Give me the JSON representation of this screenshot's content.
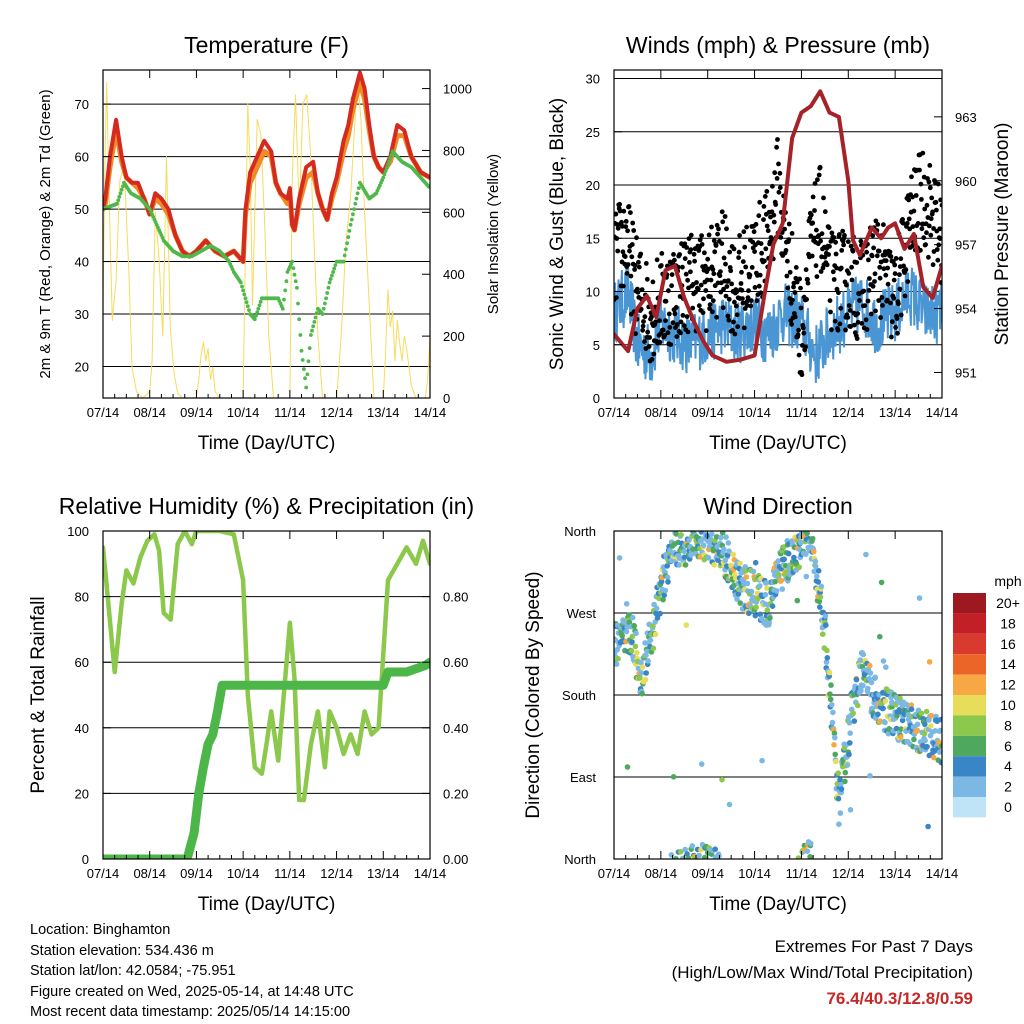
{
  "colors": {
    "red": "#d42a20",
    "orange": "#f08a24",
    "green_td": "#4fb84a",
    "yellow": "#f5dc5e",
    "blue": "#4a96d4",
    "black": "#000000",
    "maroon": "#a52228",
    "rh_green": "#8cc84b",
    "precip_green": "#4db648",
    "extremes": "#c62828"
  },
  "chart_data": [
    {
      "type": "line",
      "title": "Temperature (F)",
      "xlabel": "Time (Day/UTC)",
      "ylabel": "2m & 9m T (Red, Orange) & 2m Td (Green)",
      "ylabel_right": "Solar Insolation (Yellow)",
      "x_ticks": [
        "07/14",
        "08/14",
        "09/14",
        "10/14",
        "11/14",
        "12/14",
        "13/14",
        "14/14"
      ],
      "ylim": [
        14,
        76.5
      ],
      "y_ticks": [
        20,
        30,
        40,
        50,
        60,
        70
      ],
      "ylim_right": [
        0,
        1060
      ],
      "y_ticks_right": [
        0,
        200,
        400,
        600,
        800,
        1000
      ],
      "grid": true,
      "series": [
        {
          "name": "2m T",
          "color_key": "red",
          "x": [
            0,
            0.05,
            0.15,
            0.28,
            0.4,
            0.5,
            0.62,
            0.75,
            0.88,
            1.0,
            1.12,
            1.25,
            1.4,
            1.55,
            1.7,
            1.85,
            2.0,
            2.2,
            2.4,
            2.6,
            2.8,
            3.0,
            3.05,
            3.15,
            3.3,
            3.45,
            3.6,
            3.7,
            3.8,
            3.95,
            4.0,
            4.05,
            4.1,
            4.2,
            4.35,
            4.5,
            4.6,
            4.7,
            4.8,
            4.9,
            5.0,
            5.15,
            5.25,
            5.35,
            5.5,
            5.6,
            5.7,
            5.8,
            5.9,
            6.0,
            6.15,
            6.3,
            6.45,
            6.6,
            6.8,
            7.0
          ],
          "values": [
            50,
            52,
            60,
            67,
            60,
            56,
            55,
            55,
            52,
            49,
            53,
            52,
            50,
            45,
            42,
            41,
            42,
            44,
            42,
            41,
            42,
            40,
            50,
            57,
            60,
            63,
            61,
            55,
            53,
            52,
            54,
            47,
            46,
            52,
            58,
            59,
            53,
            50,
            48,
            53,
            56,
            63,
            66,
            71,
            76,
            73,
            66,
            60,
            58,
            57,
            60,
            66,
            65,
            60,
            57,
            56
          ]
        },
        {
          "name": "9m T",
          "color_key": "orange",
          "x": [
            0,
            0.05,
            0.15,
            0.28,
            0.4,
            0.5,
            0.62,
            0.75,
            0.88,
            1.0,
            1.12,
            1.25,
            1.4,
            1.55,
            1.7,
            1.85,
            2.0,
            2.2,
            2.4,
            2.6,
            2.8,
            3.0,
            3.05,
            3.15,
            3.3,
            3.45,
            3.6,
            3.7,
            3.8,
            3.95,
            4.0,
            4.05,
            4.1,
            4.2,
            4.35,
            4.5,
            4.6,
            4.7,
            4.8,
            4.9,
            5.0,
            5.15,
            5.25,
            5.35,
            5.5,
            5.6,
            5.7,
            5.8,
            5.9,
            6.0,
            6.15,
            6.3,
            6.45,
            6.6,
            6.8,
            7.0
          ],
          "values": [
            50,
            51,
            58,
            65,
            59,
            56,
            55,
            54,
            52,
            49,
            52,
            51,
            49,
            45,
            42,
            41,
            42,
            44,
            42,
            41,
            42,
            40,
            49,
            55,
            58,
            61,
            60,
            55,
            53,
            51,
            53,
            47,
            46,
            51,
            56,
            57,
            53,
            50,
            48,
            52,
            55,
            61,
            64,
            69,
            74,
            71,
            65,
            60,
            58,
            57,
            59,
            64,
            64,
            60,
            57,
            56
          ]
        },
        {
          "name": "2m Td",
          "color_key": "green_td",
          "x": [
            0,
            0.3,
            0.45,
            0.6,
            0.8,
            1.0,
            1.2,
            1.3,
            1.5,
            1.7,
            1.9,
            2.1,
            2.3,
            2.5,
            2.7,
            2.8,
            2.95,
            3.05,
            3.15,
            3.25,
            3.4,
            3.6,
            3.75,
            3.85,
            3.95,
            4.05,
            4.15,
            4.25,
            4.35,
            4.45,
            4.6,
            4.7,
            4.85,
            5.0,
            5.15,
            5.3,
            5.5,
            5.7,
            5.85,
            6.0,
            6.2,
            6.4,
            6.6,
            6.8,
            7.0
          ],
          "values": [
            50,
            51,
            55,
            53,
            52,
            50,
            46,
            44,
            42,
            41,
            41,
            42,
            43,
            42,
            40,
            38,
            36,
            33,
            30,
            29,
            33,
            33,
            33,
            31,
            38,
            40,
            35,
            23,
            16,
            26,
            31,
            30,
            36,
            40,
            40,
            47,
            55,
            52,
            53,
            56,
            61,
            59,
            58,
            56,
            54
          ]
        },
        {
          "name": "Solar Insolation",
          "color_key": "yellow",
          "axis": "right",
          "x": [
            0,
            0.04,
            0.08,
            0.13,
            0.2,
            0.28,
            0.36,
            0.45,
            0.55,
            0.62,
            0.72,
            0.85,
            1.0,
            1.05,
            1.12,
            1.2,
            1.28,
            1.36,
            1.44,
            1.52,
            1.6,
            1.7,
            2.0,
            2.05,
            2.1,
            2.15,
            2.2,
            2.25,
            2.3,
            2.35,
            2.4,
            2.5,
            3.0,
            3.05,
            3.1,
            3.15,
            3.2,
            3.25,
            3.3,
            3.38,
            3.45,
            3.55,
            3.65,
            4.0,
            4.05,
            4.12,
            4.2,
            4.28,
            4.36,
            4.44,
            4.52,
            4.6,
            4.7,
            5.0,
            5.1,
            5.2,
            5.3,
            5.38,
            5.45,
            5.52,
            5.6,
            5.7,
            5.8,
            6.0,
            6.05,
            6.1,
            6.15,
            6.2,
            6.25,
            6.3,
            6.35,
            6.4,
            6.45,
            6.5,
            6.55,
            6.6,
            6.7,
            6.9,
            6.95,
            7.0
          ],
          "values": [
            300,
            750,
            1020,
            650,
            250,
            380,
            700,
            760,
            420,
            100,
            20,
            0,
            20,
            120,
            600,
            450,
            200,
            780,
            230,
            80,
            15,
            0,
            0,
            60,
            140,
            180,
            120,
            160,
            60,
            100,
            20,
            0,
            0,
            500,
            950,
            750,
            300,
            600,
            900,
            850,
            600,
            200,
            0,
            0,
            700,
            980,
            600,
            950,
            980,
            800,
            500,
            200,
            0,
            0,
            200,
            500,
            650,
            860,
            1030,
            900,
            600,
            300,
            0,
            0,
            150,
            350,
            230,
            280,
            120,
            250,
            180,
            120,
            200,
            160,
            100,
            40,
            0,
            0,
            60,
            200
          ]
        }
      ]
    },
    {
      "type": "scatter",
      "title": "Winds (mph) & Pressure (mb)",
      "xlabel": "Time (Day/UTC)",
      "ylabel": "Sonic Wind & Gust (Blue, Black)",
      "ylabel_right": "Station Pressure (Maroon)",
      "x_ticks": [
        "07/14",
        "08/14",
        "09/14",
        "10/14",
        "11/14",
        "12/14",
        "13/14",
        "14/14"
      ],
      "ylim": [
        0,
        30.8
      ],
      "y_ticks": [
        0,
        5,
        10,
        15,
        20,
        25,
        30
      ],
      "ylim_right": [
        949.8,
        965.2
      ],
      "y_ticks_right": [
        951,
        954,
        957,
        960,
        963
      ],
      "grid": true,
      "series": [
        {
          "name": "Sonic Wind",
          "color_key": "blue",
          "x": [
            0,
            0.3,
            0.5,
            0.8,
            1.0,
            1.3,
            1.6,
            2.0,
            2.3,
            2.6,
            3.0,
            3.3,
            3.6,
            4.0,
            4.3,
            4.6,
            5.0,
            5.3,
            5.6,
            6.0,
            6.3,
            6.6,
            7.0
          ],
          "values": [
            8,
            10,
            5,
            4,
            7,
            6,
            5,
            6,
            7,
            6,
            7,
            6,
            8,
            7,
            4,
            6,
            8,
            9,
            7,
            8,
            10,
            8,
            8
          ],
          "band": 3
        },
        {
          "name": "Gust",
          "color_key": "black",
          "x": [
            0,
            0.25,
            0.5,
            0.8,
            1.0,
            1.3,
            1.6,
            2.0,
            2.3,
            2.6,
            3.0,
            3.3,
            3.5,
            3.6,
            4.0,
            4.2,
            4.4,
            4.6,
            5.0,
            5.3,
            5.6,
            6.0,
            6.3,
            6.6,
            6.8,
            7.0
          ],
          "values": [
            13,
            15,
            10,
            8,
            9,
            10,
            11,
            11,
            13,
            10,
            13,
            15,
            20,
            16,
            6,
            14,
            17,
            11,
            11,
            10,
            13,
            9,
            16,
            19,
            17,
            15
          ],
          "band": 6
        },
        {
          "name": "Station Pressure",
          "color_key": "maroon",
          "axis": "right",
          "x": [
            0,
            0.3,
            0.5,
            0.7,
            0.9,
            1.1,
            1.3,
            1.5,
            1.7,
            1.9,
            2.1,
            2.4,
            2.7,
            3.0,
            3.2,
            3.4,
            3.6,
            3.8,
            4.0,
            4.2,
            4.4,
            4.6,
            4.8,
            5.0,
            5.1,
            5.25,
            5.5,
            5.7,
            5.85,
            6.0,
            6.2,
            6.4,
            6.6,
            6.8,
            7.0
          ],
          "values": [
            952.8,
            952.0,
            954.0,
            954.6,
            953.6,
            955.8,
            956.0,
            954.5,
            953.4,
            952.5,
            951.8,
            951.5,
            951.6,
            951.8,
            954.5,
            957.0,
            958.0,
            962.0,
            963.2,
            963.5,
            964.2,
            963.2,
            963.0,
            960.0,
            957.2,
            956.5,
            957.8,
            957.3,
            957.8,
            958.0,
            956.8,
            957.5,
            955.0,
            954.5,
            956.0
          ]
        }
      ]
    },
    {
      "type": "line",
      "title": "Relative Humidity (%) & Precipitation (in)",
      "xlabel": "Time (Day/UTC)",
      "ylabel": "Percent & Total Rainfall",
      "x_ticks": [
        "07/14",
        "08/14",
        "09/14",
        "10/14",
        "11/14",
        "12/14",
        "13/14",
        "14/14"
      ],
      "ylim": [
        0,
        100
      ],
      "y_ticks": [
        0,
        20,
        40,
        60,
        80,
        100
      ],
      "ylim_right": [
        0,
        1.0
      ],
      "y_ticks_right": [
        "0.00",
        "0.20",
        "0.40",
        "0.60",
        "0.80"
      ],
      "grid": true,
      "series": [
        {
          "name": "Relative Humidity",
          "color_key": "rh_green",
          "x": [
            0,
            0.1,
            0.25,
            0.4,
            0.5,
            0.65,
            0.8,
            0.95,
            1.1,
            1.2,
            1.3,
            1.45,
            1.6,
            1.75,
            1.9,
            2.0,
            2.2,
            2.5,
            2.8,
            3.0,
            3.1,
            3.25,
            3.4,
            3.5,
            3.6,
            3.75,
            3.9,
            4.0,
            4.1,
            4.2,
            4.3,
            4.45,
            4.6,
            4.75,
            4.85,
            5.0,
            5.15,
            5.3,
            5.45,
            5.6,
            5.75,
            5.9,
            6.1,
            6.3,
            6.5,
            6.7,
            6.85,
            7.0
          ],
          "values": [
            95,
            80,
            57,
            78,
            88,
            84,
            92,
            97,
            99,
            94,
            75,
            73,
            96,
            100,
            96,
            100,
            100,
            100,
            99,
            85,
            50,
            28,
            26,
            35,
            45,
            30,
            55,
            72,
            55,
            18,
            18,
            35,
            45,
            28,
            45,
            40,
            32,
            38,
            32,
            45,
            38,
            40,
            85,
            90,
            95,
            90,
            97,
            90
          ]
        },
        {
          "name": "Total Rainfall",
          "color_key": "precip_green",
          "axis": "right",
          "x": [
            0,
            1.8,
            1.95,
            2.05,
            2.15,
            2.25,
            2.35,
            2.45,
            2.55,
            2.7,
            3.0,
            4.0,
            5.0,
            5.5,
            6.0,
            6.1,
            6.5,
            6.9,
            7.0
          ],
          "values": [
            0.0,
            0.0,
            0.08,
            0.2,
            0.28,
            0.35,
            0.38,
            0.45,
            0.53,
            0.53,
            0.53,
            0.53,
            0.53,
            0.53,
            0.53,
            0.57,
            0.57,
            0.59,
            0.6
          ]
        }
      ]
    },
    {
      "type": "scatter",
      "title": "Wind Direction",
      "xlabel": "Time (Day/UTC)",
      "ylabel": "Direction (Colored By Speed)",
      "x_ticks": [
        "07/14",
        "08/14",
        "09/14",
        "10/14",
        "11/14",
        "12/14",
        "13/14",
        "14/14"
      ],
      "ylim": [
        0,
        360
      ],
      "y_tick_labels": [
        "North",
        "East",
        "South",
        "West",
        "North"
      ],
      "y_ticks": [
        0,
        90,
        180,
        270,
        360
      ],
      "grid": true,
      "colorbar": {
        "title": "mph",
        "labels": [
          "20+",
          "18",
          "16",
          "14",
          "12",
          "10",
          "8",
          "6",
          "4",
          "2",
          "0"
        ],
        "colors": [
          "#9c1a1f",
          "#c21f26",
          "#d93a2e",
          "#ec6528",
          "#f7a743",
          "#e8dd5b",
          "#8cc84b",
          "#4ea85d",
          "#3a85c6",
          "#7bb8e4",
          "#bfe4f7"
        ]
      },
      "series": [
        {
          "name": "Wind Direction",
          "x": [
            0,
            0.3,
            0.6,
            0.9,
            1.2,
            1.5,
            1.8,
            2.1,
            2.4,
            2.7,
            3.0,
            3.3,
            3.6,
            3.9,
            4.2,
            4.5,
            4.8,
            5.1,
            5.3,
            5.5,
            5.7,
            5.9,
            6.2,
            6.5,
            6.8,
            7.0
          ],
          "values": [
            230,
            260,
            200,
            270,
            340,
            345,
            355,
            350,
            330,
            300,
            290,
            280,
            320,
            340,
            360,
            250,
            60,
            170,
            215,
            180,
            170,
            160,
            150,
            140,
            135,
            130
          ],
          "band": 25
        }
      ]
    }
  ],
  "info": {
    "location": "Location: Binghamton",
    "elevation": "Station elevation: 534.436 m",
    "latlon": "Station lat/lon: 42.0584; -75.951",
    "created": "Figure created on Wed, 2025-05-14, at 14:48 UTC",
    "timestamp": "Most recent data timestamp: 2025/05/14 14:15:00"
  },
  "extremes": {
    "line1": "Extremes For Past 7 Days",
    "line2": "(High/Low/Max Wind/Total Precipitation)",
    "values": "76.4/40.3/12.8/0.59"
  }
}
